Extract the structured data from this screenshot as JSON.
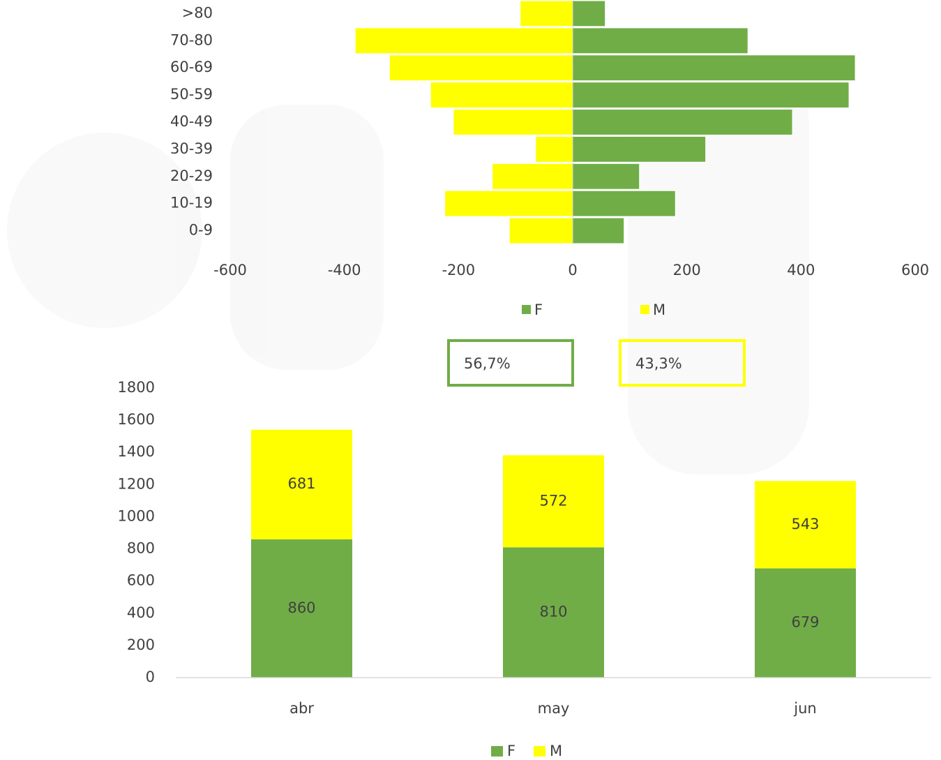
{
  "chart_data": [
    {
      "type": "bar",
      "orientation": "horizontal",
      "categories": [
        "0-9",
        "10-19",
        "20-29",
        "30-39",
        "40-49",
        "50-59",
        "60-69",
        "70-80",
        ">80"
      ],
      "series": [
        {
          "name": "F",
          "color": "#70ad47",
          "values": [
            90,
            180,
            117,
            233,
            385,
            484,
            495,
            307,
            57
          ]
        },
        {
          "name": "M",
          "color": "#ffff00",
          "values": [
            -111,
            -224,
            -141,
            -65,
            -209,
            -249,
            -321,
            -381,
            -92
          ]
        }
      ],
      "xlim": [
        -600,
        600
      ],
      "xticks": [
        -600,
        -400,
        -200,
        0,
        200,
        400,
        600
      ],
      "legend": "bottom"
    },
    {
      "type": "bar",
      "stacked": true,
      "categories": [
        "abr",
        "may",
        "jun"
      ],
      "series": [
        {
          "name": "F",
          "color": "#70ad47",
          "values": [
            860,
            810,
            679
          ]
        },
        {
          "name": "M",
          "color": "#ffff00",
          "values": [
            681,
            572,
            543
          ]
        }
      ],
      "ylim": [
        0,
        1800
      ],
      "yticks": [
        0,
        200,
        400,
        600,
        800,
        1000,
        1200,
        1400,
        1600,
        1800
      ],
      "legend": "bottom"
    }
  ],
  "annotations": [
    {
      "text": "56,7%",
      "color": "#70ad47"
    },
    {
      "text": "43,3%",
      "color": "#ffff00"
    }
  ]
}
